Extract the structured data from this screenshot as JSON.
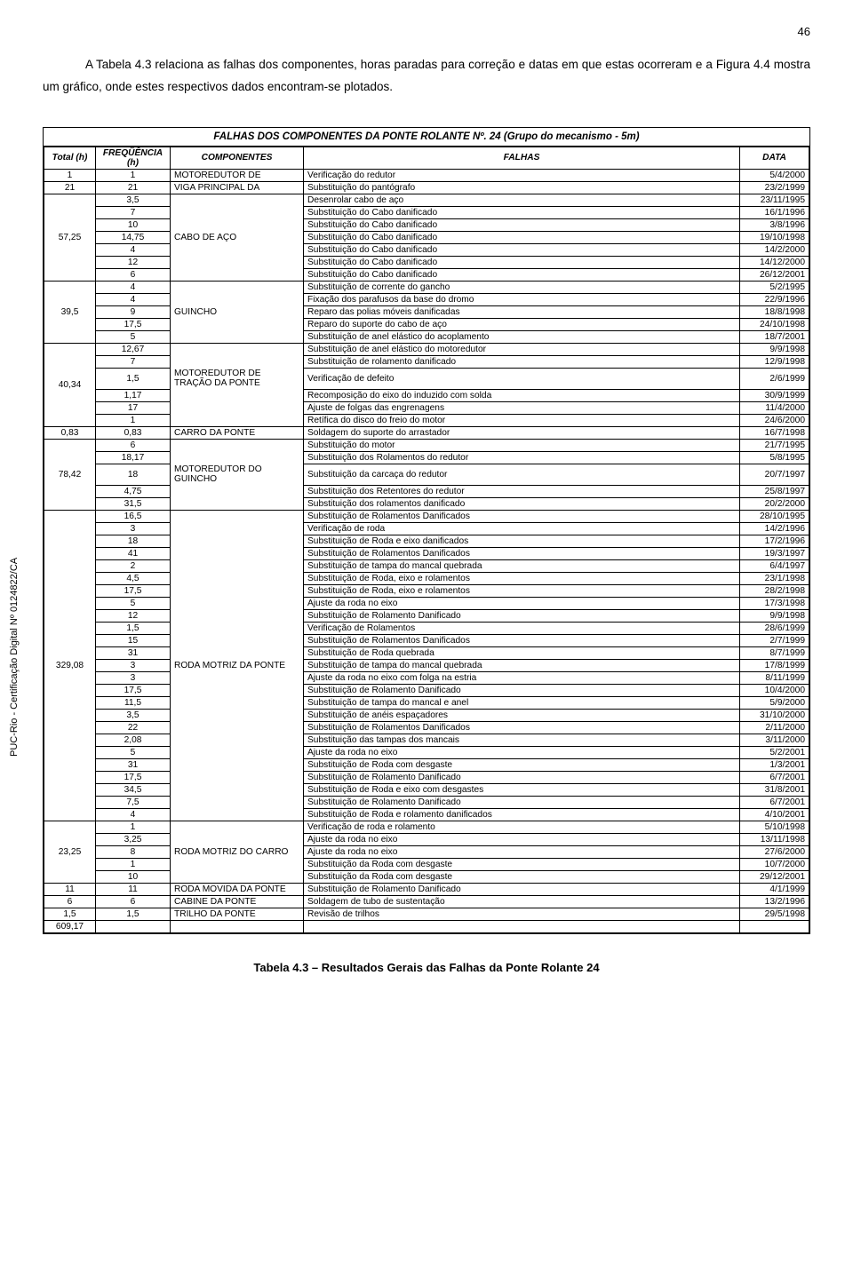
{
  "page_number": "46",
  "intro_text": "A Tabela 4.3 relaciona as falhas dos componentes, horas paradas para correção e datas em que estas ocorreram e a Figura 4.4 mostra um gráfico, onde estes respectivos dados encontram-se plotados.",
  "sidetext": "PUC-Rio - Certificação Digital Nº 0124822/CA",
  "table_title": "FALHAS DOS COMPONENTES DA PONTE ROLANTE Nº. 24  (Grupo do mecanismo - 5m)",
  "headers": [
    "Total (h)",
    "FREQÜÊNCIA (h)",
    "COMPONENTES",
    "FALHAS",
    "DATA"
  ],
  "table_caption": "Tabela 4.3 – Resultados Gerais das Falhas da Ponte Rolante 24",
  "grand_total": "609,17",
  "groups": [
    {
      "total": "1",
      "rows": [
        {
          "f": "1",
          "c": "MOTOREDUTOR DE",
          "fa": "Verificação do redutor",
          "d": "5/4/2000"
        }
      ]
    },
    {
      "total": "21",
      "rows": [
        {
          "f": "21",
          "c": "VIGA PRINCIPAL DA",
          "fa": "Substituição do pantógrafo",
          "d": "23/2/1999"
        }
      ]
    },
    {
      "total": "57,25",
      "comp": "CABO DE AÇO",
      "rows": [
        {
          "f": "3,5",
          "fa": "Desenrolar cabo de aço",
          "d": "23/11/1995"
        },
        {
          "f": "7",
          "fa": "Substituição do Cabo danificado",
          "d": "16/1/1996"
        },
        {
          "f": "10",
          "fa": "Substituição do Cabo danificado",
          "d": "3/8/1996"
        },
        {
          "f": "14,75",
          "fa": "Substituição do Cabo danificado",
          "d": "19/10/1998"
        },
        {
          "f": "4",
          "fa": "Substituição do Cabo danificado",
          "d": "14/2/2000"
        },
        {
          "f": "12",
          "fa": "Substituição do Cabo danificado",
          "d": "14/12/2000"
        },
        {
          "f": "6",
          "fa": "Substituição do Cabo danificado",
          "d": "26/12/2001"
        }
      ]
    },
    {
      "total": "39,5",
      "comp": "GUINCHO",
      "rows": [
        {
          "f": "4",
          "fa": "Substituição de corrente do gancho",
          "d": "5/2/1995"
        },
        {
          "f": "4",
          "fa": "Fixação dos parafusos da base do dromo",
          "d": "22/9/1996"
        },
        {
          "f": "9",
          "fa": "Reparo das polias móveis danificadas",
          "d": "18/8/1998"
        },
        {
          "f": "17,5",
          "fa": "Reparo do suporte do cabo de aço",
          "d": "24/10/1998"
        },
        {
          "f": "5",
          "fa": "Substituição de anel elástico do acoplamento",
          "d": "18/7/2001"
        }
      ]
    },
    {
      "total": "40,34",
      "comp": "MOTOREDUTOR DE TRAÇÃO DA PONTE",
      "rows": [
        {
          "f": "12,67",
          "fa": "Substituição de anel elástico do motoredutor",
          "d": "9/9/1998"
        },
        {
          "f": "7",
          "fa": "Substituição de rolamento danificado",
          "d": "12/9/1998"
        },
        {
          "f": "1,5",
          "fa": "Verificação de defeito",
          "d": "2/6/1999"
        },
        {
          "f": "1,17",
          "fa": "Recomposição do eixo do induzido com solda",
          "d": "30/9/1999"
        },
        {
          "f": "17",
          "fa": "Ajuste de folgas das engrenagens",
          "d": "11/4/2000"
        },
        {
          "f": "1",
          "fa": "Retífica do disco do freio do motor",
          "d": "24/6/2000"
        }
      ]
    },
    {
      "total": "0,83",
      "rows": [
        {
          "f": "0,83",
          "c": "CARRO DA PONTE",
          "fa": "Soldagem do suporte do arrastador",
          "d": "16/7/1998"
        }
      ]
    },
    {
      "total": "78,42",
      "comp": "MOTOREDUTOR DO GUINCHO",
      "rows": [
        {
          "f": "6",
          "fa": "Substituição do motor",
          "d": "21/7/1995"
        },
        {
          "f": "18,17",
          "fa": "Substituição dos Rolamentos do redutor",
          "d": "5/8/1995"
        },
        {
          "f": "18",
          "fa": "Substituição da carcaça do redutor",
          "d": "20/7/1997"
        },
        {
          "f": "4,75",
          "fa": "Substituição dos Retentores do redutor",
          "d": "25/8/1997"
        },
        {
          "f": "31,5",
          "fa": "Substituição dos rolamentos danificado",
          "d": "20/2/2000"
        }
      ]
    },
    {
      "total": "329,08",
      "comp": "RODA MOTRIZ DA PONTE",
      "rows": [
        {
          "f": "16,5",
          "fa": "Substituição de Rolamentos Danificados",
          "d": "28/10/1995"
        },
        {
          "f": "3",
          "fa": "Verificação de roda",
          "d": "14/2/1996"
        },
        {
          "f": "18",
          "fa": "Substituição de Roda e eixo danificados",
          "d": "17/2/1996"
        },
        {
          "f": "41",
          "fa": "Substituição de Rolamentos Danificados",
          "d": "19/3/1997"
        },
        {
          "f": "2",
          "fa": "Substituição de tampa do mancal quebrada",
          "d": "6/4/1997"
        },
        {
          "f": "4,5",
          "fa": "Substituição de Roda, eixo e rolamentos",
          "d": "23/1/1998"
        },
        {
          "f": "17,5",
          "fa": "Substituição de Roda, eixo e rolamentos",
          "d": "28/2/1998"
        },
        {
          "f": "5",
          "fa": "Ajuste da roda no eixo",
          "d": "17/3/1998"
        },
        {
          "f": "12",
          "fa": "Substituição de Rolamento Danificado",
          "d": "9/9/1998"
        },
        {
          "f": "1,5",
          "fa": "Verificação de Rolamentos",
          "d": "28/6/1999"
        },
        {
          "f": "15",
          "fa": "Substituição de Rolamentos Danificados",
          "d": "2/7/1999"
        },
        {
          "f": "31",
          "fa": "Substituição de Roda quebrada",
          "d": "8/7/1999"
        },
        {
          "f": "3",
          "fa": "Substituição de tampa do mancal quebrada",
          "d": "17/8/1999"
        },
        {
          "f": "3",
          "fa": "Ajuste da roda no eixo com folga na estria",
          "d": "8/11/1999"
        },
        {
          "f": "17,5",
          "fa": "Substituição de Rolamento Danificado",
          "d": "10/4/2000"
        },
        {
          "f": "11,5",
          "fa": "Substituição de tampa do mancal e anel",
          "d": "5/9/2000"
        },
        {
          "f": "3,5",
          "fa": "Substituição de anéis espaçadores",
          "d": "31/10/2000"
        },
        {
          "f": "22",
          "fa": "Substituição de Rolamentos Danificados",
          "d": "2/11/2000"
        },
        {
          "f": "2,08",
          "fa": "Substituição das tampas dos mancais",
          "d": "3/11/2000"
        },
        {
          "f": "5",
          "fa": "Ajuste da roda no eixo",
          "d": "5/2/2001"
        },
        {
          "f": "31",
          "fa": "Substituição de Roda com desgaste",
          "d": "1/3/2001"
        },
        {
          "f": "17,5",
          "fa": "Substituição de Rolamento Danificado",
          "d": "6/7/2001"
        },
        {
          "f": "34,5",
          "fa": "Substituição de Roda e eixo com desgastes",
          "d": "31/8/2001"
        },
        {
          "f": "7,5",
          "fa": "Substituição de Rolamento Danificado",
          "d": "6/7/2001"
        },
        {
          "f": "4",
          "fa": "Substituição de Roda e rolamento danificados",
          "d": "4/10/2001"
        }
      ]
    },
    {
      "total": "23,25",
      "comp": "RODA MOTRIZ DO CARRO",
      "rows": [
        {
          "f": "1",
          "fa": "Verificação de roda e rolamento",
          "d": "5/10/1998"
        },
        {
          "f": "3,25",
          "fa": "Ajuste da roda no eixo",
          "d": "13/11/1998"
        },
        {
          "f": "8",
          "fa": "Ajuste da roda no eixo",
          "d": "27/6/2000"
        },
        {
          "f": "1",
          "fa": "Substituição da Roda com desgaste",
          "d": "10/7/2000"
        },
        {
          "f": "10",
          "fa": "Substituição da Roda com desgaste",
          "d": "29/12/2001"
        }
      ]
    },
    {
      "total": "11",
      "rows": [
        {
          "f": "11",
          "c": "RODA MOVIDA DA PONTE",
          "fa": "Substituição de Rolamento Danificado",
          "d": "4/1/1999"
        }
      ]
    },
    {
      "total": "6",
      "rows": [
        {
          "f": "6",
          "c": "CABINE DA PONTE",
          "fa": "Soldagem de tubo de sustentação",
          "d": "13/2/1996"
        }
      ]
    },
    {
      "total": "1,5",
      "rows": [
        {
          "f": "1,5",
          "c": "TRILHO DA PONTE",
          "fa": "Revisão de trilhos",
          "d": "29/5/1998"
        }
      ]
    }
  ]
}
